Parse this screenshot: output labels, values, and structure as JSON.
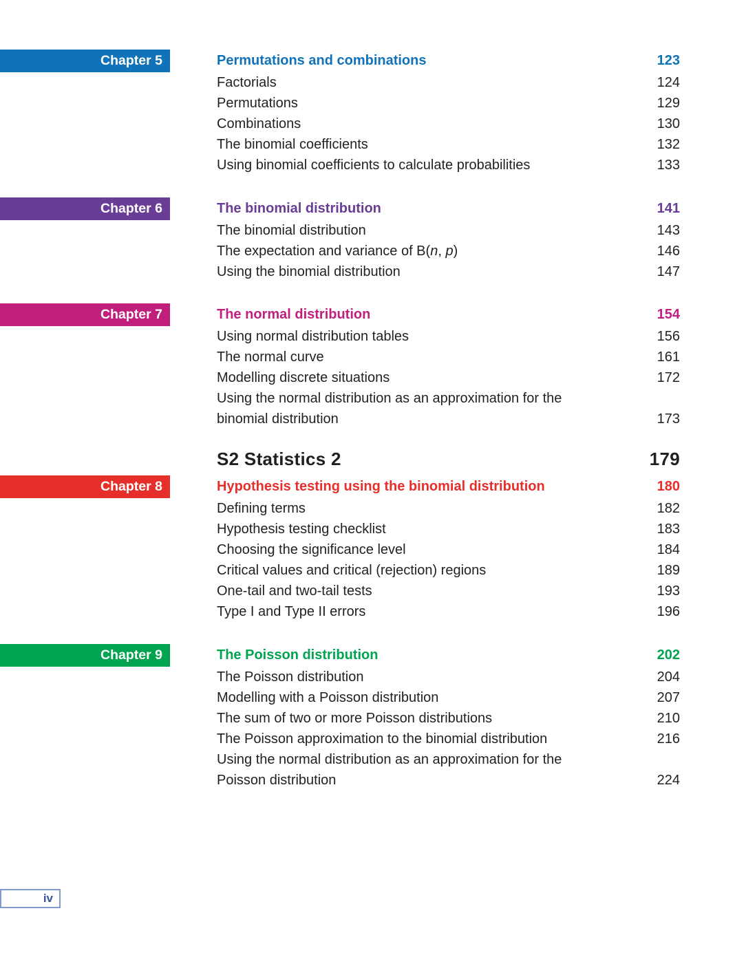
{
  "document": {
    "footer": {
      "page_label": "iv"
    }
  },
  "toc": {
    "sections": [
      {
        "kind": "chapter",
        "banner": "Chapter 5",
        "accent_color": "#1072b8",
        "title": "Permutations and combinations",
        "title_page": "123",
        "entries": [
          {
            "lines": [
              "Factorials"
            ],
            "page": "124"
          },
          {
            "lines": [
              "Permutations"
            ],
            "page": "129"
          },
          {
            "lines": [
              "Combinations"
            ],
            "page": "130"
          },
          {
            "lines": [
              "The binomial coefficients"
            ],
            "page": "132"
          },
          {
            "lines": [
              "Using binomial coefficients to calculate probabilities"
            ],
            "page": "133"
          }
        ]
      },
      {
        "kind": "chapter",
        "banner": "Chapter 6",
        "accent_color": "#693d96",
        "title": "The binomial distribution",
        "title_page": "141",
        "entries": [
          {
            "lines": [
              "The binomial distribution"
            ],
            "page": "143"
          },
          {
            "lines": [
              "The expectation and variance of B(*n*, *p*)"
            ],
            "page": "146"
          },
          {
            "lines": [
              "Using the binomial distribution"
            ],
            "page": "147"
          }
        ]
      },
      {
        "kind": "chapter",
        "banner": "Chapter 7",
        "accent_color": "#c01f7d",
        "title": "The normal distribution",
        "title_page": "154",
        "entries": [
          {
            "lines": [
              "Using normal distribution tables"
            ],
            "page": "156"
          },
          {
            "lines": [
              "The normal curve"
            ],
            "page": "161"
          },
          {
            "lines": [
              "Modelling discrete situations"
            ],
            "page": "172"
          },
          {
            "lines": [
              "Using the normal distribution as an approximation for the",
              "binomial distribution"
            ],
            "page": "173"
          }
        ]
      },
      {
        "kind": "part",
        "title": "S2 Statistics 2",
        "page": "179"
      },
      {
        "kind": "chapter",
        "banner": "Chapter 8",
        "accent_color": "#e62f2b",
        "title": "Hypothesis testing using the binomial distribution",
        "title_page": "180",
        "entries": [
          {
            "lines": [
              "Defining terms"
            ],
            "page": "182"
          },
          {
            "lines": [
              "Hypothesis testing checklist"
            ],
            "page": "183"
          },
          {
            "lines": [
              "Choosing the significance level"
            ],
            "page": "184"
          },
          {
            "lines": [
              "Critical values and critical (rejection) regions"
            ],
            "page": "189"
          },
          {
            "lines": [
              "One-tail and two-tail tests"
            ],
            "page": "193"
          },
          {
            "lines": [
              "Type I and Type II errors"
            ],
            "page": "196"
          }
        ]
      },
      {
        "kind": "chapter",
        "banner": "Chapter 9",
        "accent_color": "#00a34f",
        "title": "The Poisson distribution",
        "title_page": "202",
        "entries": [
          {
            "lines": [
              "The Poisson distribution"
            ],
            "page": "204"
          },
          {
            "lines": [
              "Modelling with a Poisson distribution"
            ],
            "page": "207"
          },
          {
            "lines": [
              "The sum of two or more Poisson distributions"
            ],
            "page": "210"
          },
          {
            "lines": [
              "The Poisson approximation to the binomial distribution"
            ],
            "page": "216"
          },
          {
            "lines": [
              "Using the normal distribution as an approximation for the",
              "Poisson distribution"
            ],
            "page": "224"
          }
        ]
      }
    ]
  }
}
